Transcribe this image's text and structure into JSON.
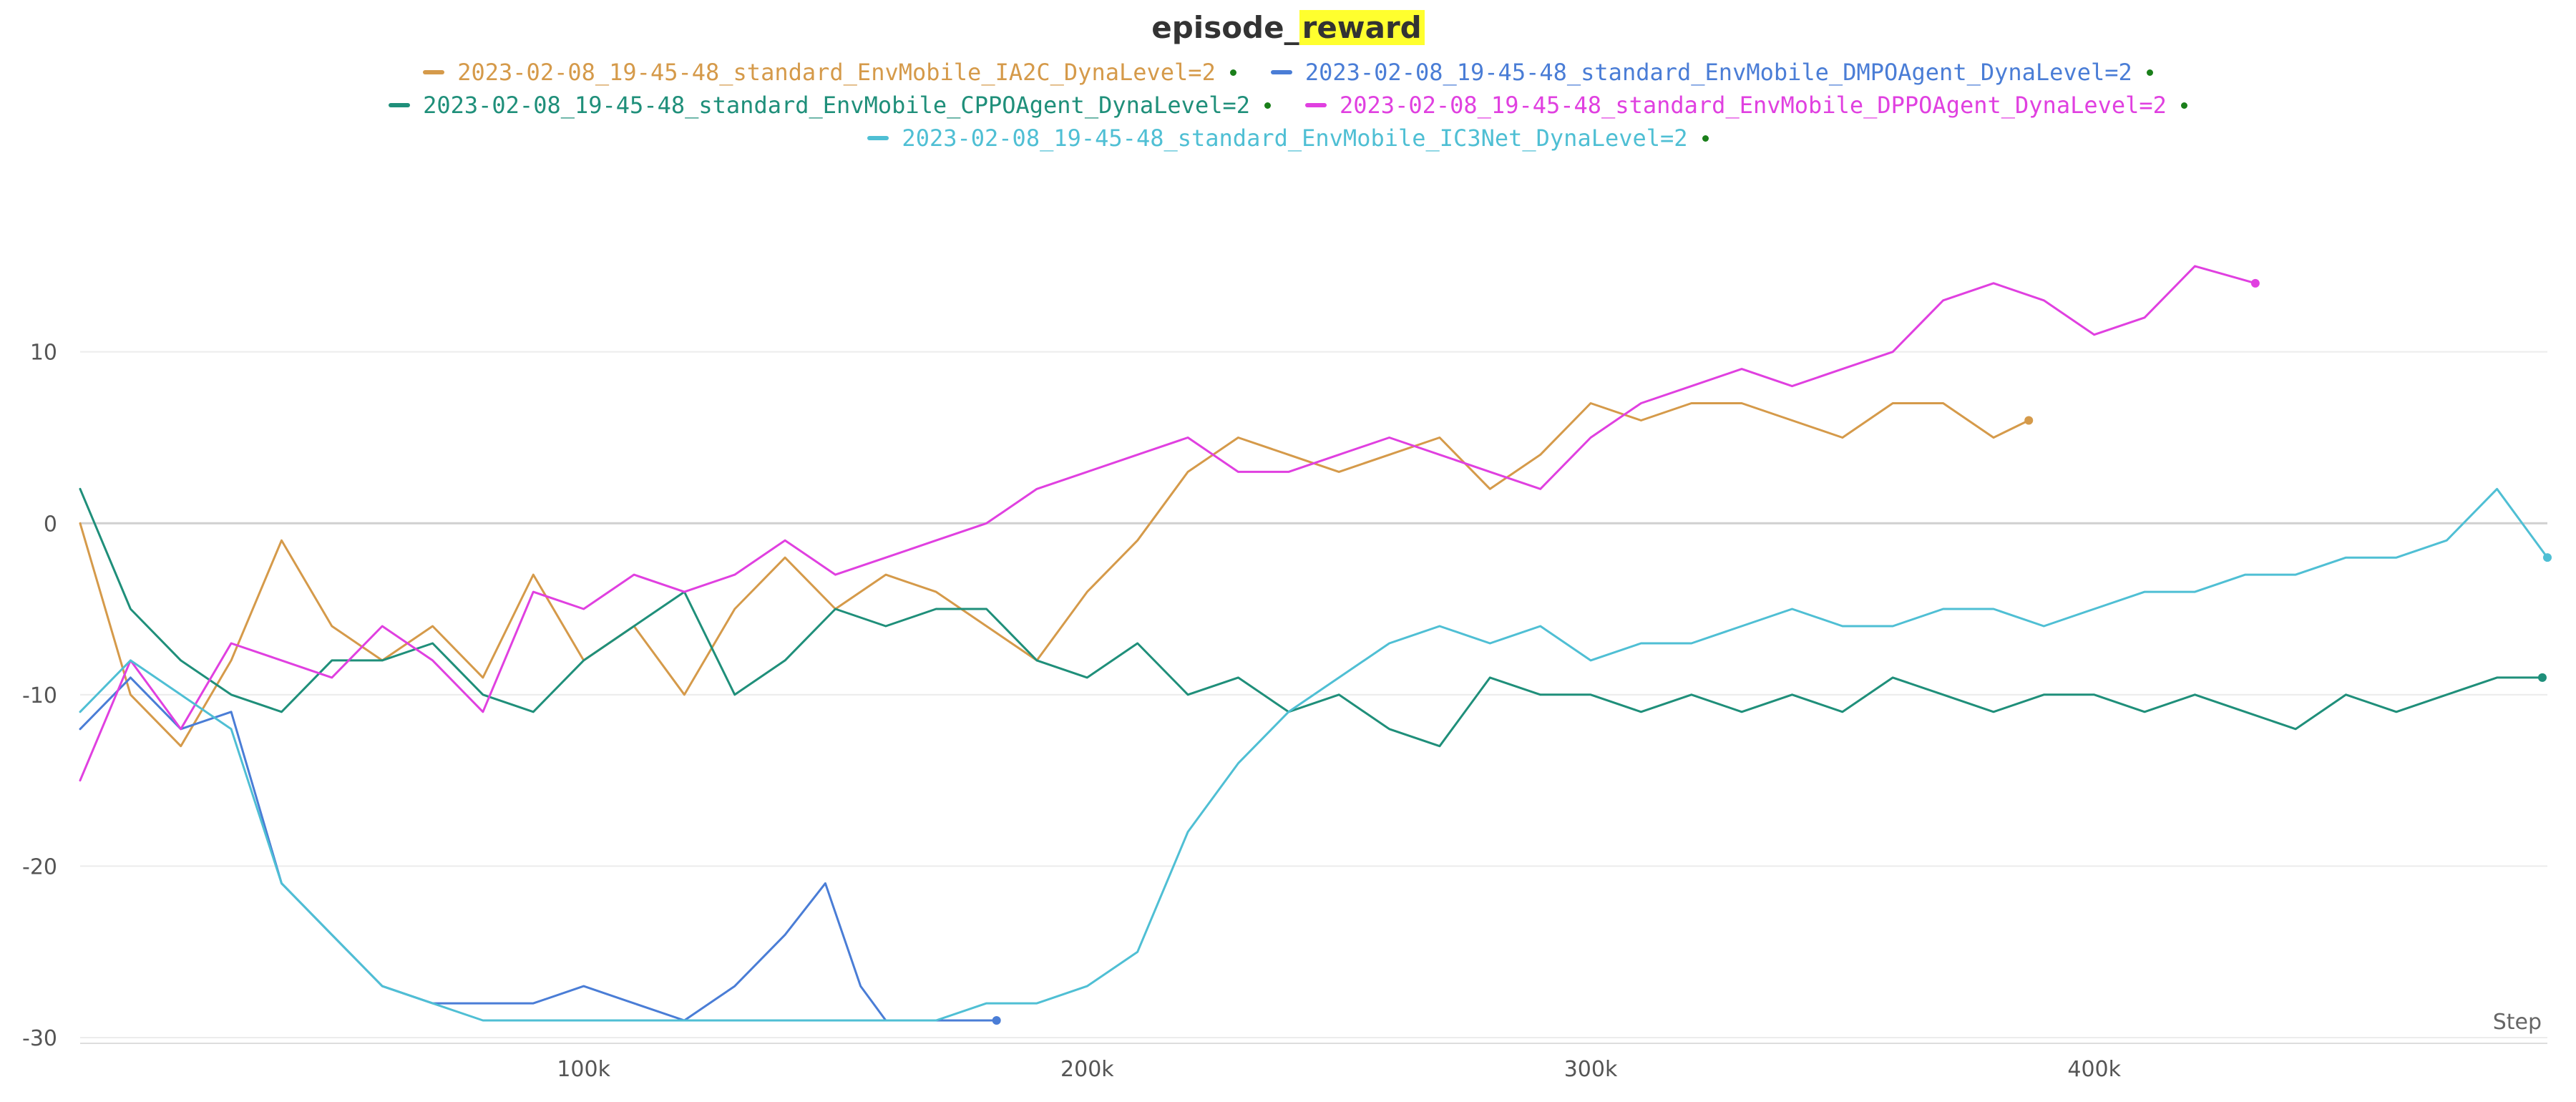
{
  "chart_data": {
    "type": "line",
    "title_prefix": "episode_",
    "title_highlight": "reward",
    "xlabel": "Step",
    "ylabel": "",
    "xlim": [
      0,
      490000
    ],
    "ylim": [
      -30,
      18
    ],
    "x_ticks": [
      100000,
      200000,
      300000,
      400000
    ],
    "x_tick_labels": [
      "100k",
      "200k",
      "300k",
      "400k"
    ],
    "y_ticks": [
      10,
      0,
      -10,
      -20,
      -30
    ],
    "grid": true,
    "legend_position": "top-center",
    "series": [
      {
        "name": "2023-02-08_19-45-48_standard_EnvMobile_IA2C_DynaLevel=2",
        "color": "#d59a4a",
        "x": [
          0,
          10000,
          20000,
          30000,
          40000,
          50000,
          60000,
          70000,
          80000,
          90000,
          100000,
          110000,
          120000,
          130000,
          140000,
          150000,
          160000,
          170000,
          180000,
          190000,
          200000,
          210000,
          220000,
          230000,
          240000,
          250000,
          260000,
          270000,
          280000,
          290000,
          300000,
          310000,
          320000,
          330000,
          340000,
          350000,
          360000,
          370000,
          380000,
          387000
        ],
        "y": [
          0,
          -10,
          -13,
          -8,
          -1,
          -6,
          -8,
          -6,
          -9,
          -3,
          -8,
          -6,
          -10,
          -5,
          -2,
          -5,
          -3,
          -4,
          -6,
          -8,
          -4,
          -1,
          3,
          5,
          4,
          3,
          4,
          5,
          2,
          4,
          7,
          6,
          7,
          7,
          6,
          5,
          7,
          7,
          5,
          6
        ]
      },
      {
        "name": "2023-02-08_19-45-48_standard_EnvMobile_DMPOAgent_DynaLevel=2",
        "color": "#4a7dd6",
        "x": [
          0,
          10000,
          20000,
          30000,
          40000,
          50000,
          60000,
          70000,
          80000,
          90000,
          100000,
          110000,
          120000,
          130000,
          140000,
          148000,
          155000,
          160000,
          170000,
          182000
        ],
        "y": [
          -12,
          -9,
          -12,
          -11,
          -21,
          -24,
          -27,
          -28,
          -28,
          -28,
          -27,
          -28,
          -29,
          -27,
          -24,
          -21,
          -27,
          -29,
          -29,
          -29
        ]
      },
      {
        "name": "2023-02-08_19-45-48_standard_EnvMobile_CPPOAgent_DynaLevel=2",
        "color": "#1f8f7a",
        "x": [
          0,
          10000,
          20000,
          30000,
          40000,
          50000,
          60000,
          70000,
          80000,
          90000,
          100000,
          110000,
          120000,
          130000,
          140000,
          150000,
          160000,
          170000,
          180000,
          190000,
          200000,
          210000,
          220000,
          230000,
          240000,
          250000,
          260000,
          270000,
          280000,
          290000,
          300000,
          310000,
          320000,
          330000,
          340000,
          350000,
          360000,
          370000,
          380000,
          390000,
          400000,
          410000,
          420000,
          430000,
          440000,
          450000,
          460000,
          470000,
          480000,
          489000
        ],
        "y": [
          2,
          -5,
          -8,
          -10,
          -11,
          -8,
          -8,
          -7,
          -10,
          -11,
          -8,
          -6,
          -4,
          -10,
          -8,
          -5,
          -6,
          -5,
          -5,
          -8,
          -9,
          -7,
          -10,
          -9,
          -11,
          -10,
          -12,
          -13,
          -9,
          -10,
          -10,
          -11,
          -10,
          -11,
          -10,
          -11,
          -9,
          -10,
          -11,
          -10,
          -10,
          -11,
          -10,
          -11,
          -12,
          -10,
          -11,
          -10,
          -9,
          -9
        ]
      },
      {
        "name": "2023-02-08_19-45-48_standard_EnvMobile_DPPOAgent_DynaLevel=2",
        "color": "#e040e0",
        "x": [
          0,
          10000,
          20000,
          30000,
          40000,
          50000,
          60000,
          70000,
          80000,
          90000,
          100000,
          110000,
          120000,
          130000,
          140000,
          150000,
          160000,
          170000,
          180000,
          190000,
          200000,
          210000,
          220000,
          230000,
          240000,
          250000,
          260000,
          270000,
          280000,
          290000,
          300000,
          310000,
          320000,
          330000,
          340000,
          350000,
          360000,
          370000,
          380000,
          390000,
          400000,
          410000,
          420000,
          432000
        ],
        "y": [
          -15,
          -8,
          -12,
          -7,
          -8,
          -9,
          -6,
          -8,
          -11,
          -4,
          -5,
          -3,
          -4,
          -3,
          -1,
          -3,
          -2,
          -1,
          0,
          2,
          3,
          4,
          5,
          3,
          3,
          4,
          5,
          4,
          3,
          2,
          5,
          7,
          8,
          9,
          8,
          9,
          10,
          13,
          14,
          13,
          11,
          12,
          15,
          14
        ]
      },
      {
        "name": "2023-02-08_19-45-48_standard_EnvMobile_IC3Net_DynaLevel=2",
        "color": "#4fbfd4",
        "x": [
          0,
          10000,
          20000,
          30000,
          40000,
          50000,
          60000,
          70000,
          80000,
          90000,
          100000,
          110000,
          120000,
          130000,
          140000,
          150000,
          160000,
          170000,
          180000,
          190000,
          200000,
          210000,
          220000,
          230000,
          240000,
          250000,
          260000,
          270000,
          280000,
          290000,
          300000,
          310000,
          320000,
          330000,
          340000,
          350000,
          360000,
          370000,
          380000,
          390000,
          400000,
          410000,
          420000,
          430000,
          440000,
          450000,
          460000,
          470000,
          480000,
          490000
        ],
        "y": [
          -11,
          -8,
          -10,
          -12,
          -21,
          -24,
          -27,
          -28,
          -29,
          -29,
          -29,
          -29,
          -29,
          -29,
          -29,
          -29,
          -29,
          -29,
          -28,
          -28,
          -27,
          -25,
          -18,
          -14,
          -11,
          -9,
          -7,
          -6,
          -7,
          -6,
          -8,
          -7,
          -7,
          -6,
          -5,
          -6,
          -6,
          -5,
          -5,
          -6,
          -5,
          -4,
          -4,
          -3,
          -3,
          -2,
          -2,
          -1,
          2,
          -2
        ]
      }
    ]
  }
}
